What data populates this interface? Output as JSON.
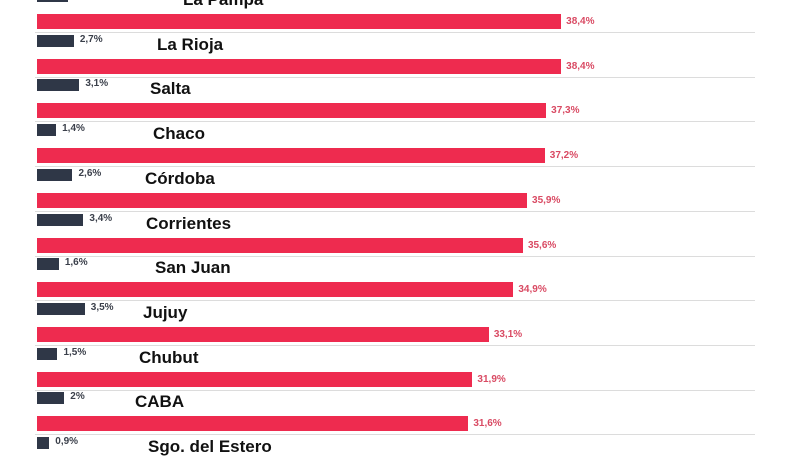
{
  "chart_data": {
    "type": "bar",
    "orientation": "horizontal",
    "categories": [
      "La Pampa",
      "La Rioja",
      "Salta",
      "Chaco",
      "Córdoba",
      "Corrientes",
      "San Juan",
      "Jujuy",
      "Chubut",
      "CABA",
      "Sgo. del Estero"
    ],
    "series": [
      {
        "color": "#2f3747",
        "values": [
          null,
          2.7,
          3.1,
          1.4,
          2.6,
          3.4,
          1.6,
          3.5,
          1.5,
          2,
          0.9
        ],
        "labels": [
          "",
          "2,7%",
          "3,1%",
          "1,4%",
          "2,6%",
          "3,4%",
          "1,6%",
          "3,5%",
          "1,5%",
          "2%",
          "0,9%"
        ]
      },
      {
        "color": "#ee2b4f",
        "values": [
          38.4,
          38.4,
          37.3,
          37.2,
          35.9,
          35.6,
          34.9,
          33.1,
          31.9,
          31.6,
          null
        ],
        "labels": [
          "38,4%",
          "38,4%",
          "37,3%",
          "37,2%",
          "35,9%",
          "35,6%",
          "34,9%",
          "33,1%",
          "31,9%",
          "31,6%",
          ""
        ]
      }
    ],
    "grid": true,
    "unit": "%"
  }
}
